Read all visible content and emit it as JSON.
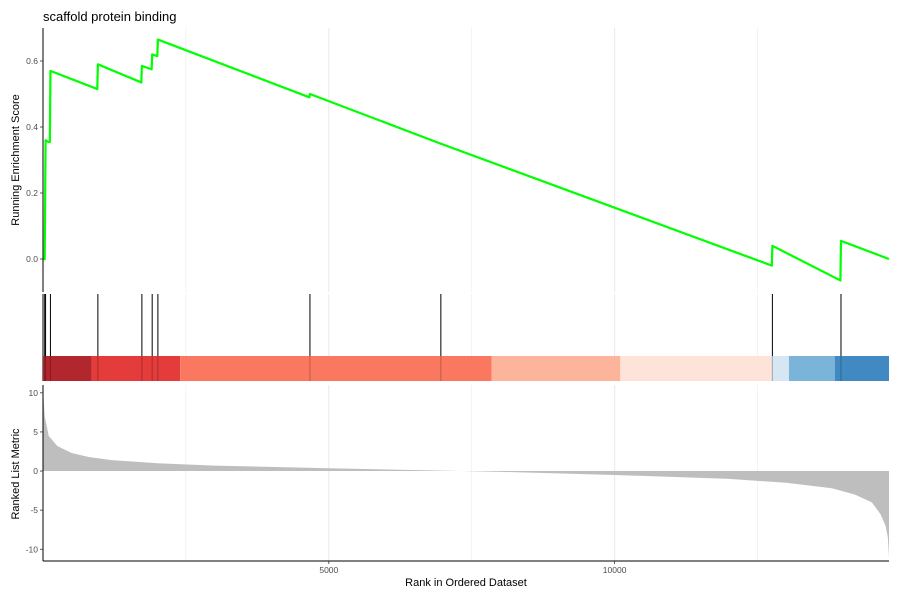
{
  "chart_data": {
    "type": "line",
    "title": "scaffold protein binding",
    "xlabel": "Rank in Ordered Dataset",
    "xlim": [
      0,
      14800
    ],
    "x_ticks": [
      5000,
      10000
    ],
    "grid": true,
    "colors": {
      "running_score": "#00ff00",
      "hit_line": "#000000",
      "metric_fill": "#bebebe",
      "grid": "#ebebeb",
      "axis": "#000000"
    },
    "panels": {
      "running_score": {
        "ylabel": "Running Enrichment Score",
        "ylim": [
          -0.1,
          0.7
        ],
        "y_ticks": [
          0.0,
          0.2,
          0.4,
          0.6
        ],
        "points": [
          [
            0,
            0.0
          ],
          [
            30,
            0.0
          ],
          [
            45,
            0.36
          ],
          [
            90,
            0.355
          ],
          [
            120,
            0.355
          ],
          [
            130,
            0.57
          ],
          [
            950,
            0.515
          ],
          [
            960,
            0.59
          ],
          [
            1720,
            0.535
          ],
          [
            1730,
            0.585
          ],
          [
            1900,
            0.575
          ],
          [
            1910,
            0.62
          ],
          [
            2000,
            0.615
          ],
          [
            2010,
            0.665
          ],
          [
            4660,
            0.49
          ],
          [
            4670,
            0.5
          ],
          [
            6950,
            0.35
          ],
          [
            12750,
            -0.02
          ],
          [
            12760,
            0.04
          ],
          [
            13950,
            -0.065
          ],
          [
            13960,
            0.055
          ],
          [
            14800,
            0.0
          ]
        ]
      },
      "hits": {
        "positions": [
          30,
          45,
          130,
          960,
          1730,
          1910,
          2010,
          4670,
          6960,
          12760,
          13960
        ]
      },
      "color_band": {
        "segments": [
          {
            "start": 0,
            "end": 850,
            "color": "#b2262e"
          },
          {
            "start": 850,
            "end": 2400,
            "color": "#e33c3a"
          },
          {
            "start": 2400,
            "end": 7850,
            "color": "#fb7860"
          },
          {
            "start": 7850,
            "end": 10100,
            "color": "#fcb59b"
          },
          {
            "start": 10100,
            "end": 12750,
            "color": "#fee4d8"
          },
          {
            "start": 12750,
            "end": 13050,
            "color": "#d6e6f3"
          },
          {
            "start": 13050,
            "end": 13850,
            "color": "#7bb4d9"
          },
          {
            "start": 13850,
            "end": 14800,
            "color": "#4089c2"
          }
        ]
      },
      "ranked_metric": {
        "ylabel": "Ranked List Metric",
        "ylim": [
          -11.5,
          11
        ],
        "y_ticks": [
          10,
          5,
          0,
          -5,
          -10
        ],
        "points": [
          [
            0,
            10.5
          ],
          [
            30,
            7.0
          ],
          [
            100,
            4.5
          ],
          [
            250,
            3.2
          ],
          [
            500,
            2.3
          ],
          [
            800,
            1.8
          ],
          [
            1200,
            1.4
          ],
          [
            2000,
            1.0
          ],
          [
            3000,
            0.7
          ],
          [
            5000,
            0.35
          ],
          [
            7000,
            0.05
          ],
          [
            8000,
            -0.1
          ],
          [
            9000,
            -0.3
          ],
          [
            10000,
            -0.5
          ],
          [
            11000,
            -0.75
          ],
          [
            12000,
            -1.0
          ],
          [
            13000,
            -1.5
          ],
          [
            13800,
            -2.2
          ],
          [
            14200,
            -3.0
          ],
          [
            14500,
            -4.0
          ],
          [
            14650,
            -5.5
          ],
          [
            14740,
            -7.0
          ],
          [
            14780,
            -8.5
          ],
          [
            14800,
            -11.0
          ]
        ]
      }
    }
  }
}
